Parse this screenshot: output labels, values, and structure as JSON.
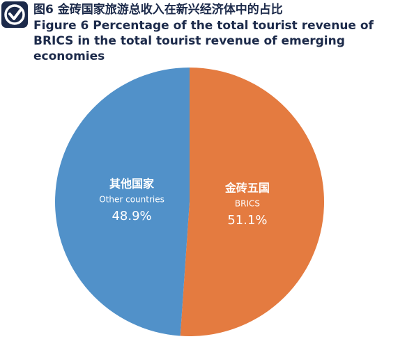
{
  "chart_data": {
    "type": "pie",
    "title": "图6 金砖国家旅游总收入在新兴经济体中的占比",
    "subtitle": "Figure 6 Percentage of the total tourist revenue of BRICS in the total tourist revenue of emerging economies",
    "categories": [
      "金砖五国",
      "其他国家"
    ],
    "categories_en": [
      "BRICS",
      "Other countries"
    ],
    "values": [
      51.1,
      48.9
    ],
    "value_labels": [
      "51.1%",
      "48.9%"
    ],
    "colors": [
      "#e47b40",
      "#5191c9"
    ]
  }
}
